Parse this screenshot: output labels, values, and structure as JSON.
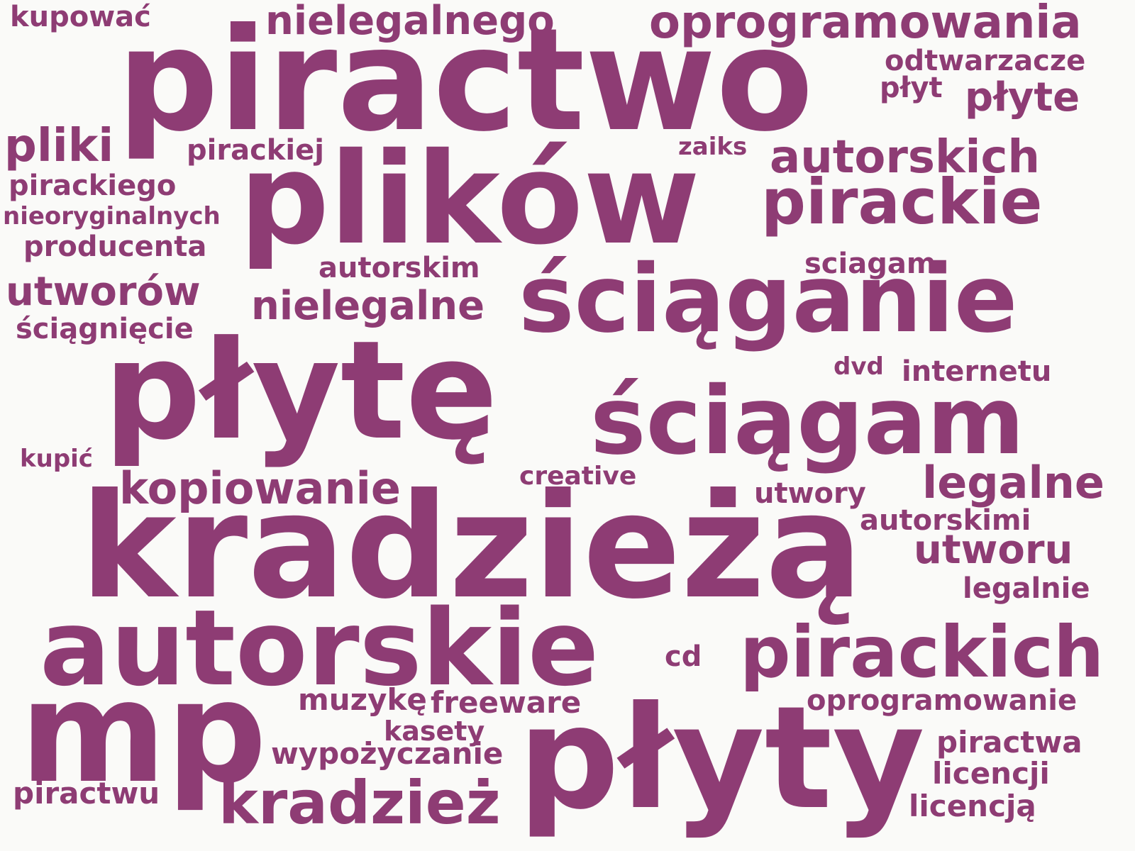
{
  "style": {
    "word_color": "#8e3c74",
    "background": "#fafaf8"
  },
  "words": [
    "kupować",
    "nielegalnego",
    "oprogramowania",
    "piractwo",
    "odtwarzacze",
    "płyt",
    "płyte",
    "pliki",
    "pirackiej",
    "plików",
    "zaiks",
    "autorskich",
    "pirackiego",
    "pirackie",
    "nieoryginalnych",
    "producenta",
    "autorskim",
    "sciagam",
    "utworów",
    "nielegalne",
    "ściąganie",
    "ściągnięcie",
    "płytę",
    "dvd",
    "internetu",
    "ściągam",
    "kupić",
    "creative",
    "kopiowanie",
    "legalne",
    "utwory",
    "kradzieżą",
    "autorskimi",
    "utworu",
    "legalnie",
    "autorskie",
    "cd",
    "pirackich",
    "mp",
    "muzykę",
    "freeware",
    "oprogramowanie",
    "kasety",
    "płyty",
    "piractwa",
    "wypożyczanie",
    "licencji",
    "piractwu",
    "kradzież",
    "licencją"
  ]
}
